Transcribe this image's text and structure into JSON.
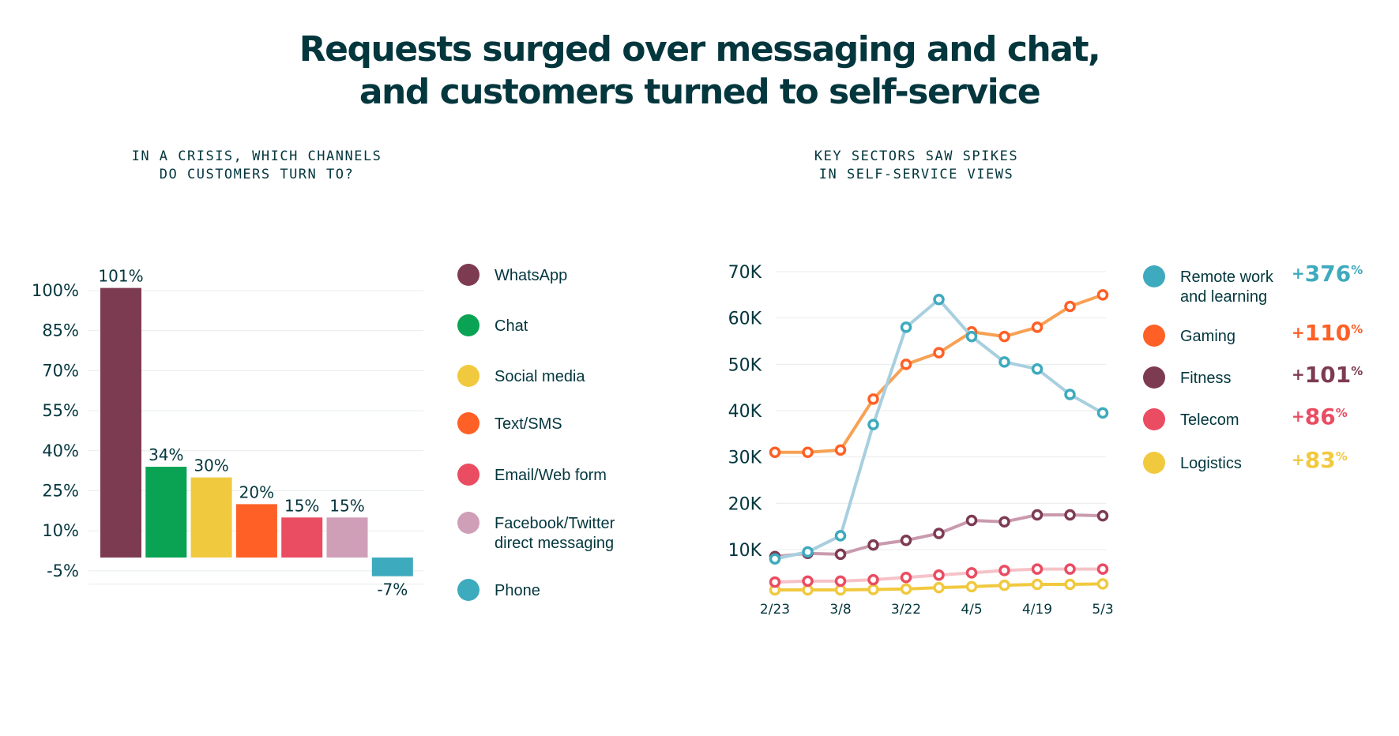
{
  "title_lines": [
    "Requests surged over messaging and chat,",
    "and customers turned to self-service"
  ],
  "chart_data": [
    {
      "type": "bar",
      "subtitle_lines": [
        "IN A CRISIS, WHICH CHANNELS",
        "DO CUSTOMERS TURN TO?"
      ],
      "categories": [
        "WhatsApp",
        "Chat",
        "Social media",
        "Text/SMS",
        "Email/Web form",
        "Facebook/Twitter direct messaging",
        "Phone"
      ],
      "legend_lines": [
        [
          "WhatsApp"
        ],
        [
          "Chat"
        ],
        [
          "Social media"
        ],
        [
          "Text/SMS"
        ],
        [
          "Email/Web form"
        ],
        [
          "Facebook/Twitter",
          "direct messaging"
        ],
        [
          "Phone"
        ]
      ],
      "values": [
        101,
        34,
        30,
        20,
        15,
        15,
        -7
      ],
      "value_labels": [
        "101%",
        "34%",
        "30%",
        "20%",
        "15%",
        "15%",
        "-7%"
      ],
      "colors": [
        "#7d3b52",
        "#09a353",
        "#f1c93f",
        "#fe6026",
        "#ea4c62",
        "#cf9fb8",
        "#3eaabd"
      ],
      "yticks": [
        "100%",
        "85%",
        "70%",
        "55%",
        "40%",
        "25%",
        "10%",
        "-5%"
      ],
      "ytick_values": [
        100,
        85,
        70,
        55,
        40,
        25,
        10,
        -5
      ],
      "ylim": [
        -10,
        100
      ],
      "grid": true,
      "legend_position": "right"
    },
    {
      "type": "line",
      "subtitle_lines": [
        "KEY SECTORS SAW SPIKES",
        "IN SELF-SERVICE VIEWS"
      ],
      "x": [
        "2/23",
        "3/1",
        "3/8",
        "3/15",
        "3/22",
        "3/29",
        "4/5",
        "4/12",
        "4/19",
        "4/26",
        "5/3"
      ],
      "xtick_labels": [
        "2/23",
        "3/8",
        "3/22",
        "4/5",
        "4/19",
        "5/3"
      ],
      "xtick_indices": [
        0,
        2,
        4,
        6,
        8,
        10
      ],
      "yticks": [
        "70K",
        "60K",
        "50K",
        "40K",
        "30K",
        "20K",
        "10K"
      ],
      "ytick_values": [
        70000,
        60000,
        50000,
        40000,
        30000,
        20000,
        10000
      ],
      "ylim": [
        0,
        70000
      ],
      "grid": true,
      "legend_position": "right",
      "series": [
        {
          "name": "Remote work and learning",
          "legend_lines": [
            "Remote work",
            "and learning"
          ],
          "change": "376",
          "color": "#3eaabd",
          "line_color": "#a8cfdf",
          "values": [
            8000,
            9500,
            13000,
            37000,
            58000,
            64000,
            56000,
            50500,
            49000,
            43500,
            39500
          ]
        },
        {
          "name": "Gaming",
          "legend_lines": [
            "Gaming"
          ],
          "change": "110",
          "color": "#fe6026",
          "line_color": "#f7a154",
          "values": [
            31000,
            31000,
            31500,
            42500,
            50000,
            52500,
            57000,
            56000,
            58000,
            62500,
            65000
          ]
        },
        {
          "name": "Fitness",
          "legend_lines": [
            "Fitness"
          ],
          "change": "101",
          "color": "#7d3b52",
          "line_color": "#c99aae",
          "values": [
            8500,
            9200,
            9000,
            11000,
            12000,
            13500,
            16300,
            16000,
            17500,
            17500,
            17300
          ]
        },
        {
          "name": "Telecom",
          "legend_lines": [
            "Telecom"
          ],
          "change": "86",
          "color": "#ea4c62",
          "line_color": "#f6c2c8",
          "values": [
            3000,
            3200,
            3200,
            3500,
            4000,
            4500,
            5000,
            5500,
            5800,
            5800,
            5800
          ]
        },
        {
          "name": "Logistics",
          "legend_lines": [
            "Logistics"
          ],
          "change": "83",
          "color": "#f1c93f",
          "line_color": "#f1c93f",
          "values": [
            1300,
            1300,
            1300,
            1400,
            1500,
            1800,
            2000,
            2300,
            2500,
            2500,
            2600
          ]
        }
      ]
    }
  ],
  "text_color": "#03363d"
}
